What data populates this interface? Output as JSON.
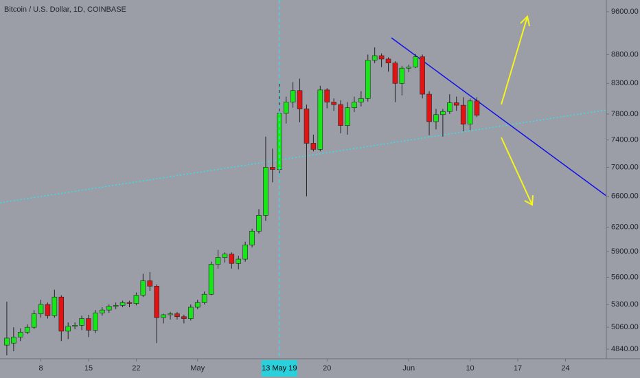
{
  "chart_data": {
    "type": "candlestick",
    "title": "Bitcoin / U.S. Dollar, 1D, COINBASE",
    "log_scale": true,
    "up_color": "#19e619",
    "down_color": "#e01414",
    "x": [
      "2019-04-03",
      "2019-04-04",
      "2019-04-05",
      "2019-04-06",
      "2019-04-07",
      "2019-04-08",
      "2019-04-09",
      "2019-04-10",
      "2019-04-11",
      "2019-04-12",
      "2019-04-13",
      "2019-04-14",
      "2019-04-15",
      "2019-04-16",
      "2019-04-17",
      "2019-04-18",
      "2019-04-19",
      "2019-04-20",
      "2019-04-21",
      "2019-04-22",
      "2019-04-23",
      "2019-04-24",
      "2019-04-25",
      "2019-04-26",
      "2019-04-27",
      "2019-04-28",
      "2019-04-29",
      "2019-04-30",
      "2019-05-01",
      "2019-05-02",
      "2019-05-03",
      "2019-05-04",
      "2019-05-05",
      "2019-05-06",
      "2019-05-07",
      "2019-05-08",
      "2019-05-09",
      "2019-05-10",
      "2019-05-11",
      "2019-05-12",
      "2019-05-13",
      "2019-05-14",
      "2019-05-15",
      "2019-05-16",
      "2019-05-17",
      "2019-05-18",
      "2019-05-19",
      "2019-05-20",
      "2019-05-21",
      "2019-05-22",
      "2019-05-23",
      "2019-05-24",
      "2019-05-25",
      "2019-05-26",
      "2019-05-27",
      "2019-05-28",
      "2019-05-29",
      "2019-05-30",
      "2019-05-31",
      "2019-06-01",
      "2019-06-02",
      "2019-06-03",
      "2019-06-04",
      "2019-06-05",
      "2019-06-06",
      "2019-06-07",
      "2019-06-08",
      "2019-06-09",
      "2019-06-10",
      "2019-06-11"
    ],
    "open": [
      4880,
      4900,
      4960,
      5010,
      5060,
      5200,
      5300,
      5180,
      5380,
      5020,
      5070,
      5080,
      5150,
      5030,
      5210,
      5240,
      5280,
      5290,
      5320,
      5310,
      5400,
      5560,
      5500,
      5160,
      5190,
      5200,
      5170,
      5150,
      5270,
      5320,
      5410,
      5750,
      5830,
      5870,
      5760,
      5810,
      5980,
      6150,
      6350,
      7000,
      6970,
      7810,
      7990,
      8180,
      7880,
      7350,
      7260,
      8190,
      7990,
      7950,
      7620,
      7900,
      7990,
      8050,
      8700,
      8780,
      8720,
      8650,
      8300,
      8560,
      8580,
      8760,
      8120,
      7680,
      7790,
      7840,
      7980,
      7940,
      7640,
      8010
    ],
    "high": [
      5330,
      5060,
      5050,
      5090,
      5240,
      5350,
      5320,
      5460,
      5400,
      5110,
      5110,
      5180,
      5190,
      5240,
      5270,
      5300,
      5320,
      5340,
      5340,
      5430,
      5640,
      5660,
      5520,
      5200,
      5220,
      5220,
      5190,
      5300,
      5350,
      5440,
      5780,
      5920,
      5890,
      5890,
      5850,
      6020,
      6180,
      6430,
      7450,
      7270,
      8300,
      8080,
      8320,
      8380,
      7950,
      7480,
      8260,
      8220,
      8050,
      8020,
      7990,
      8080,
      8170,
      8800,
      8930,
      8820,
      8750,
      8680,
      8600,
      8620,
      8810,
      8800,
      8170,
      7880,
      7880,
      8120,
      8080,
      8070,
      8050,
      8070
    ],
    "low": [
      4780,
      4820,
      4920,
      4990,
      5040,
      5160,
      5150,
      5160,
      4920,
      4940,
      5040,
      5030,
      4960,
      5000,
      5180,
      5210,
      5250,
      5270,
      5270,
      5290,
      5380,
      5450,
      4900,
      5100,
      5140,
      5140,
      5100,
      5130,
      5250,
      5300,
      5400,
      5700,
      5770,
      5700,
      5690,
      5780,
      5950,
      6120,
      6280,
      6790,
      6880,
      7650,
      7900,
      7670,
      6600,
      7230,
      7230,
      7890,
      7850,
      7500,
      7480,
      7830,
      7920,
      8000,
      8650,
      8580,
      8500,
      7990,
      8100,
      8490,
      8560,
      8050,
      7470,
      7560,
      7450,
      7800,
      7850,
      7530,
      7550,
      7750
    ],
    "close": [
      4950,
      4960,
      5010,
      5060,
      5200,
      5300,
      5180,
      5380,
      5020,
      5070,
      5080,
      5150,
      5030,
      5210,
      5240,
      5280,
      5290,
      5320,
      5310,
      5400,
      5560,
      5500,
      5160,
      5190,
      5200,
      5170,
      5150,
      5270,
      5320,
      5410,
      5750,
      5830,
      5870,
      5760,
      5810,
      5980,
      6150,
      6350,
      7000,
      6970,
      7810,
      7990,
      8180,
      7880,
      7350,
      7260,
      8190,
      7990,
      7950,
      7620,
      7900,
      7990,
      8050,
      8700,
      8780,
      8720,
      8650,
      8300,
      8560,
      8580,
      8760,
      8120,
      7680,
      7790,
      7840,
      7980,
      7940,
      7640,
      8010,
      7780
    ],
    "xlim": [
      "2019-04-02",
      "2019-06-30"
    ],
    "xticks": [
      {
        "value": "2019-04-08",
        "label": "8"
      },
      {
        "value": "2019-04-15",
        "label": "15"
      },
      {
        "value": "2019-04-22",
        "label": "22"
      },
      {
        "value": "2019-05-01",
        "label": "May"
      },
      {
        "value": "2019-05-20",
        "label": "20"
      },
      {
        "value": "2019-06-01",
        "label": "Jun"
      },
      {
        "value": "2019-06-10",
        "label": "10"
      },
      {
        "value": "2019-06-17",
        "label": "17"
      },
      {
        "value": "2019-06-24",
        "label": "24"
      }
    ],
    "crosshair": {
      "value": "2019-05-13",
      "label": "13 May 19"
    },
    "ylim": [
      4760,
      9830
    ],
    "yticks": [
      {
        "value": 4840,
        "label": "4840.00"
      },
      {
        "value": 5060,
        "label": "5060.00"
      },
      {
        "value": 5300,
        "label": "5300.00"
      },
      {
        "value": 5600,
        "label": "5600.00"
      },
      {
        "value": 5900,
        "label": "5900.00"
      },
      {
        "value": 6200,
        "label": "6200.00"
      },
      {
        "value": 6600,
        "label": "6600.00"
      },
      {
        "value": 7000,
        "label": "7000.00"
      },
      {
        "value": 7400,
        "label": "7400.00"
      },
      {
        "value": 7800,
        "label": "7800.00"
      },
      {
        "value": 8300,
        "label": "8300.00"
      },
      {
        "value": 8800,
        "label": "8800.00"
      },
      {
        "value": 9600,
        "label": "9600.00"
      }
    ]
  }
}
